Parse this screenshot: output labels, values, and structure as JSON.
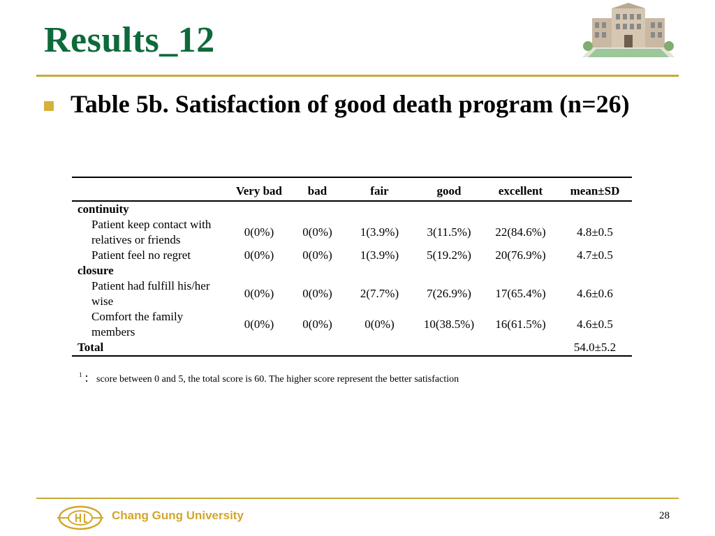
{
  "slide": {
    "title": "Results_12",
    "caption": "Table 5b. Satisfaction of good death program (n=26)",
    "page_number": "28"
  },
  "table": {
    "headers": [
      "",
      "Very bad",
      "bad",
      "fair",
      "good",
      "excellent",
      "mean±SD"
    ],
    "sections": [
      {
        "label": "continuity",
        "rows": [
          {
            "label": "Patient keep contact with relatives or friends",
            "values": [
              "0(0%)",
              "0(0%)",
              "1(3.9%)",
              "3(11.5%)",
              "22(84.6%)",
              "4.8±0.5"
            ]
          },
          {
            "label": "Patient feel no regret",
            "values": [
              "0(0%)",
              "0(0%)",
              "1(3.9%)",
              "5(19.2%)",
              "20(76.9%)",
              "4.7±0.5"
            ]
          }
        ]
      },
      {
        "label": "closure",
        "rows": [
          {
            "label": "Patient had fulfill his/her wise",
            "values": [
              "0(0%)",
              "0(0%)",
              "2(7.7%)",
              "7(26.9%)",
              "17(65.4%)",
              "4.6±0.6"
            ]
          },
          {
            "label": "Comfort the family members",
            "values": [
              "0(0%)",
              "0(0%)",
              "0(0%)",
              "10(38.5%)",
              "16(61.5%)",
              "4.6±0.5"
            ]
          }
        ]
      }
    ],
    "total": {
      "label": "Total",
      "value": "54.0±5.2"
    },
    "footnote": {
      "marker": "1",
      "text": "： score between 0 and 5, the total score is 60. The higher score represent the better satisfaction"
    }
  },
  "footer": {
    "university_name": "Chang Gung University",
    "logo_icon": "chang-gung-university-emblem-icon"
  },
  "colors": {
    "title": "#0d6a3a",
    "rule": "#c8a83a",
    "bullet": "#d4b23c",
    "university_name": "#d4a52a"
  }
}
